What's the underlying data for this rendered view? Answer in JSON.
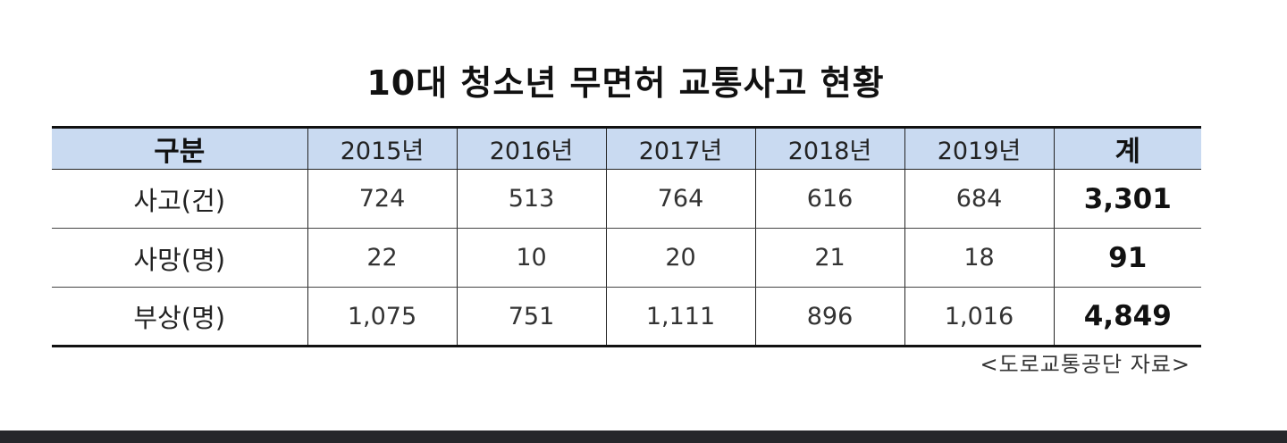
{
  "title": "10대 청소년 무면허 교통사고 현황",
  "table": {
    "headers": [
      "구분",
      "2015년",
      "2016년",
      "2017년",
      "2018년",
      "2019년",
      "계"
    ],
    "rows": [
      {
        "label": "사고(건)",
        "values": [
          "724",
          "513",
          "764",
          "616",
          "684"
        ],
        "total": "3,301"
      },
      {
        "label": "사망(명)",
        "values": [
          "22",
          "10",
          "20",
          "21",
          "18"
        ],
        "total": "91"
      },
      {
        "label": "부상(명)",
        "values": [
          "1,075",
          "751",
          "1,111",
          "896",
          "1,016"
        ],
        "total": "4,849"
      }
    ]
  },
  "source": "<도로교통공단 자료>",
  "colors": {
    "header_bg": "#c9daf1",
    "footer_bar": "#26272b"
  }
}
